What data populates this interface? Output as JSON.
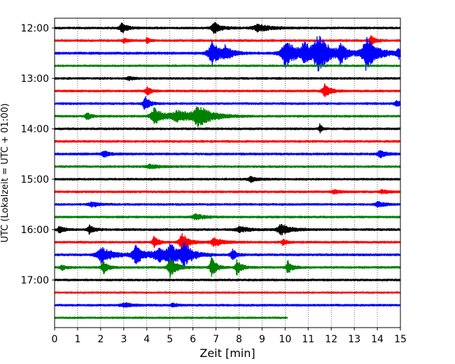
{
  "chart_data": {
    "type": "line",
    "title": "",
    "xlabel": "Zeit  [min]",
    "ylabel": "UTC (Lokalzeit = UTC + 01:00)",
    "xlim": [
      0,
      15
    ],
    "x_ticks": [
      0,
      1,
      2,
      3,
      4,
      5,
      6,
      7,
      8,
      9,
      10,
      11,
      12,
      13,
      14,
      15
    ],
    "x_tick_labels": [
      "0",
      "1",
      "2",
      "3",
      "4",
      "5",
      "6",
      "7",
      "8",
      "9",
      "10",
      "11",
      "12",
      "13",
      "14",
      "15"
    ],
    "y_start_time": "12:00",
    "y_tick_labels": [
      "12:00",
      "13:00",
      "14:00",
      "15:00",
      "16:00",
      "17:00"
    ],
    "grid": "vertical dotted",
    "trace_minutes": 15,
    "trace_colors": [
      "#000000",
      "#ff0000",
      "#0000ff",
      "#008000"
    ],
    "series": [
      {
        "start": "12:00",
        "color": "#000000",
        "end_min": 15,
        "noise": 1.0,
        "events": [
          {
            "t": 2.9,
            "amp": 8,
            "width": 0.25
          },
          {
            "t": 6.9,
            "amp": 9,
            "width": 0.3
          },
          {
            "t": 8.8,
            "amp": 5,
            "width": 0.6
          }
        ]
      },
      {
        "start": "12:15",
        "color": "#ff0000",
        "end_min": 15,
        "noise": 1.0,
        "events": [
          {
            "t": 3.0,
            "amp": 3,
            "width": 0.2
          },
          {
            "t": 4.0,
            "amp": 6,
            "width": 0.1
          },
          {
            "t": 13.7,
            "amp": 8,
            "width": 0.2
          }
        ]
      },
      {
        "start": "12:30",
        "color": "#0000ff",
        "end_min": 15,
        "noise": 1.2,
        "events": [
          {
            "t": 6.8,
            "amp": 18,
            "width": 0.4
          },
          {
            "t": 7.4,
            "amp": 8,
            "width": 0.3
          },
          {
            "t": 10.0,
            "amp": 20,
            "width": 0.5
          },
          {
            "t": 10.8,
            "amp": 16,
            "width": 0.3
          },
          {
            "t": 11.4,
            "amp": 28,
            "width": 0.5
          },
          {
            "t": 12.4,
            "amp": 14,
            "width": 0.3
          },
          {
            "t": 13.5,
            "amp": 24,
            "width": 0.5
          },
          {
            "t": 14.9,
            "amp": 8,
            "width": 0.2
          }
        ]
      },
      {
        "start": "12:45",
        "color": "#008000",
        "end_min": 15,
        "noise": 0.9,
        "events": []
      },
      {
        "start": "13:00",
        "color": "#000000",
        "end_min": 15,
        "noise": 1.0,
        "events": [
          {
            "t": 3.2,
            "amp": 3,
            "width": 0.2
          }
        ]
      },
      {
        "start": "13:15",
        "color": "#ff0000",
        "end_min": 15,
        "noise": 1.0,
        "events": [
          {
            "t": 4.0,
            "amp": 6,
            "width": 0.2
          },
          {
            "t": 11.7,
            "amp": 10,
            "width": 0.25
          }
        ]
      },
      {
        "start": "13:30",
        "color": "#0000ff",
        "end_min": 15,
        "noise": 1.0,
        "events": [
          {
            "t": 3.9,
            "amp": 12,
            "width": 0.2
          },
          {
            "t": 14.8,
            "amp": 4,
            "width": 0.2
          }
        ]
      },
      {
        "start": "13:45",
        "color": "#008000",
        "end_min": 15,
        "noise": 1.0,
        "events": [
          {
            "t": 1.4,
            "amp": 5,
            "width": 0.2
          },
          {
            "t": 4.3,
            "amp": 12,
            "width": 0.4
          },
          {
            "t": 5.3,
            "amp": 8,
            "width": 0.8
          },
          {
            "t": 6.2,
            "amp": 14,
            "width": 0.6
          }
        ]
      },
      {
        "start": "14:00",
        "color": "#000000",
        "end_min": 15,
        "noise": 1.0,
        "events": [
          {
            "t": 11.5,
            "amp": 7,
            "width": 0.1
          }
        ]
      },
      {
        "start": "14:15",
        "color": "#ff0000",
        "end_min": 15,
        "noise": 1.0,
        "events": []
      },
      {
        "start": "14:30",
        "color": "#0000ff",
        "end_min": 15,
        "noise": 1.1,
        "events": [
          {
            "t": 2.1,
            "amp": 4,
            "width": 0.3
          },
          {
            "t": 14.1,
            "amp": 5,
            "width": 0.3
          }
        ]
      },
      {
        "start": "14:45",
        "color": "#008000",
        "end_min": 15,
        "noise": 1.0,
        "events": [
          {
            "t": 4.1,
            "amp": 3,
            "width": 0.4
          }
        ]
      },
      {
        "start": "15:00",
        "color": "#000000",
        "end_min": 15,
        "noise": 1.0,
        "events": [
          {
            "t": 8.5,
            "amp": 4,
            "width": 0.3
          }
        ]
      },
      {
        "start": "15:15",
        "color": "#ff0000",
        "end_min": 15,
        "noise": 1.0,
        "events": [
          {
            "t": 12.1,
            "amp": 3,
            "width": 0.3
          },
          {
            "t": 14.2,
            "amp": 3,
            "width": 0.3
          }
        ]
      },
      {
        "start": "15:30",
        "color": "#0000ff",
        "end_min": 15,
        "noise": 1.0,
        "events": [
          {
            "t": 1.6,
            "amp": 4,
            "width": 0.3
          },
          {
            "t": 14.0,
            "amp": 4,
            "width": 0.3
          }
        ]
      },
      {
        "start": "15:45",
        "color": "#008000",
        "end_min": 15,
        "noise": 1.0,
        "events": [
          {
            "t": 6.1,
            "amp": 4,
            "width": 0.4
          }
        ]
      },
      {
        "start": "16:00",
        "color": "#000000",
        "end_min": 15,
        "noise": 1.1,
        "events": [
          {
            "t": 0.2,
            "amp": 5,
            "width": 0.2
          },
          {
            "t": 1.5,
            "amp": 6,
            "width": 0.2
          },
          {
            "t": 8.0,
            "amp": 4,
            "width": 0.4
          },
          {
            "t": 9.8,
            "amp": 8,
            "width": 0.4
          }
        ]
      },
      {
        "start": "16:15",
        "color": "#ff0000",
        "end_min": 15,
        "noise": 1.0,
        "events": [
          {
            "t": 4.3,
            "amp": 9,
            "width": 0.2
          },
          {
            "t": 5.5,
            "amp": 14,
            "width": 0.3
          },
          {
            "t": 6.9,
            "amp": 6,
            "width": 0.4
          },
          {
            "t": 9.9,
            "amp": 4,
            "width": 0.2
          }
        ]
      },
      {
        "start": "16:30",
        "color": "#0000ff",
        "end_min": 15,
        "noise": 1.1,
        "events": [
          {
            "t": 2.0,
            "amp": 12,
            "width": 0.5
          },
          {
            "t": 3.5,
            "amp": 14,
            "width": 0.4
          },
          {
            "t": 4.5,
            "amp": 10,
            "width": 0.6
          },
          {
            "t": 5.0,
            "amp": 14,
            "width": 0.3
          },
          {
            "t": 5.6,
            "amp": 16,
            "width": 0.4
          },
          {
            "t": 7.7,
            "amp": 8,
            "width": 0.2
          }
        ]
      },
      {
        "start": "16:45",
        "color": "#008000",
        "end_min": 15,
        "noise": 1.0,
        "events": [
          {
            "t": 0.3,
            "amp": 4,
            "width": 0.2
          },
          {
            "t": 2.1,
            "amp": 10,
            "width": 0.2
          },
          {
            "t": 5.0,
            "amp": 14,
            "width": 0.3
          },
          {
            "t": 6.8,
            "amp": 16,
            "width": 0.2
          },
          {
            "t": 7.9,
            "amp": 12,
            "width": 0.2
          },
          {
            "t": 10.1,
            "amp": 10,
            "width": 0.2
          }
        ]
      },
      {
        "start": "17:00",
        "color": "#000000",
        "end_min": 15,
        "noise": 1.0,
        "events": []
      },
      {
        "start": "17:15",
        "color": "#ff0000",
        "end_min": 15,
        "noise": 0.8,
        "events": []
      },
      {
        "start": "17:30",
        "color": "#0000ff",
        "end_min": 15,
        "noise": 1.0,
        "events": [
          {
            "t": 3.0,
            "amp": 3,
            "width": 0.4
          },
          {
            "t": 5.1,
            "amp": 3,
            "width": 0.2
          }
        ]
      },
      {
        "start": "17:45",
        "color": "#008000",
        "end_min": 10.1,
        "noise": 0.9,
        "events": []
      }
    ]
  }
}
